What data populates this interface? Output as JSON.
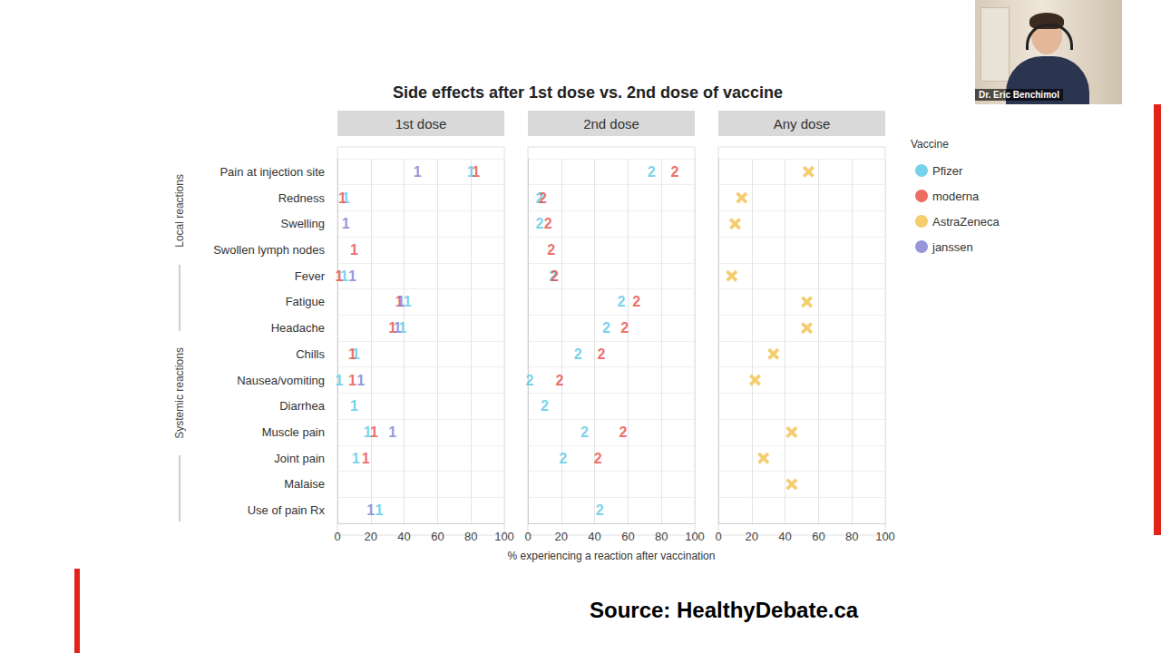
{
  "title": "Side effects after 1st dose vs. 2nd dose of vaccine",
  "legend": {
    "title": "Vaccine",
    "names": [
      "Pfizer",
      "moderna",
      "AstraZeneca",
      "janssen"
    ]
  },
  "groups": [
    {
      "label": "Local reactions",
      "first": "Pain at injection site",
      "last": "Swollen lymph nodes"
    },
    {
      "label": "Systemic reactions",
      "first": "Fever",
      "last": "Use of pain Rx"
    }
  ],
  "source": "Source: HealthyDebate.ca",
  "speaker": "Dr. Eric Benchimol",
  "chart_data": [
    {
      "type": "scatter",
      "title": "1st dose",
      "categories": [
        "Pain at injection site",
        "Redness",
        "Swelling",
        "Swollen lymph nodes",
        "Fever",
        "Fatigue",
        "Headache",
        "Chills",
        "Nausea/vomiting",
        "Diarrhea",
        "Muscle pain",
        "Joint pain",
        "Malaise",
        "Use of pain Rx"
      ],
      "series": [
        {
          "name": "Pfizer",
          "color": "#56c7e6",
          "marker": "1",
          "values": [
            80,
            5,
            null,
            null,
            4,
            42,
            39,
            11,
            1,
            10,
            18,
            11,
            null,
            25
          ]
        },
        {
          "name": "moderna",
          "color": "#e8493f",
          "marker": "1",
          "values": [
            83,
            3,
            null,
            10,
            1,
            37,
            33,
            9,
            9,
            null,
            22,
            17,
            null,
            null
          ]
        },
        {
          "name": "janssen",
          "color": "#7d7ccf",
          "marker": "1",
          "values": [
            48,
            null,
            5,
            null,
            9,
            38,
            36,
            null,
            14,
            null,
            33,
            null,
            null,
            20
          ]
        }
      ],
      "xlim": [
        0,
        100
      ],
      "xticks": [
        0,
        20,
        40,
        60,
        80,
        100
      ],
      "grid": true
    },
    {
      "type": "scatter",
      "title": "2nd dose",
      "categories": [
        "Pain at injection site",
        "Redness",
        "Swelling",
        "Swollen lymph nodes",
        "Fever",
        "Fatigue",
        "Headache",
        "Chills",
        "Nausea/vomiting",
        "Diarrhea",
        "Muscle pain",
        "Joint pain",
        "Malaise",
        "Use of pain Rx"
      ],
      "series": [
        {
          "name": "Pfizer",
          "color": "#56c7e6",
          "marker": "2",
          "values": [
            74,
            7,
            7,
            null,
            15,
            56,
            47,
            30,
            1,
            10,
            34,
            21,
            null,
            43
          ]
        },
        {
          "name": "moderna",
          "color": "#e8493f",
          "marker": "2",
          "values": [
            88,
            9,
            12,
            14,
            16,
            65,
            58,
            44,
            19,
            null,
            57,
            42,
            null,
            null
          ]
        }
      ],
      "xlim": [
        0,
        100
      ],
      "xticks": [
        0,
        20,
        40,
        60,
        80,
        100
      ],
      "xlabel": "% experiencing a reaction after vaccination",
      "grid": true,
      "tick_labels": "x"
    },
    {
      "type": "scatter",
      "title": "Any dose",
      "categories": [
        "Pain at injection site",
        "Redness",
        "Swelling",
        "Swollen lymph nodes",
        "Fever",
        "Fatigue",
        "Headache",
        "Chills",
        "Nausea/vomiting",
        "Diarrhea",
        "Muscle pain",
        "Joint pain",
        "Malaise",
        "Use of pain Rx"
      ],
      "series": [
        {
          "name": "AstraZeneca",
          "color": "#f3c85e",
          "marker": "x",
          "values": [
            54,
            14,
            10,
            null,
            8,
            53,
            53,
            33,
            22,
            null,
            44,
            27,
            44,
            null
          ]
        }
      ],
      "xlim": [
        0,
        100
      ],
      "xticks": [
        0,
        20,
        40,
        60,
        80,
        100
      ],
      "grid": true,
      "tick_labels": "x"
    }
  ]
}
